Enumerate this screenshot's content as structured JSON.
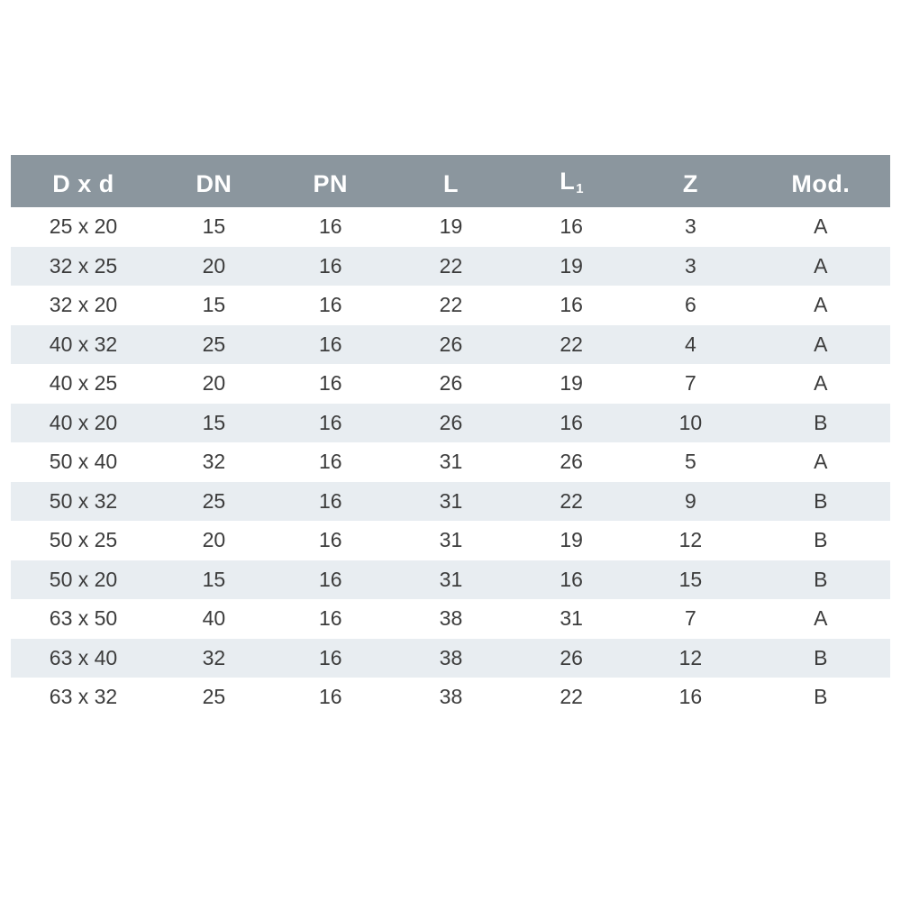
{
  "colors": {
    "header_bg": "#8b969e",
    "header_text": "#ffffff",
    "row_alt_bg": "#e8edf1",
    "row_bg": "#ffffff",
    "cell_text": "#3c3c3c",
    "page_bg": "#ffffff"
  },
  "table": {
    "columns": [
      {
        "key": "dxd",
        "label": "D x d",
        "sub": ""
      },
      {
        "key": "dn",
        "label": "DN",
        "sub": ""
      },
      {
        "key": "pn",
        "label": "PN",
        "sub": ""
      },
      {
        "key": "l",
        "label": "L",
        "sub": ""
      },
      {
        "key": "l1",
        "label": "L",
        "sub": "1"
      },
      {
        "key": "z",
        "label": "Z",
        "sub": ""
      },
      {
        "key": "mod",
        "label": "Mod.",
        "sub": ""
      }
    ],
    "rows": [
      [
        "25 x 20",
        "15",
        "16",
        "19",
        "16",
        "3",
        "A"
      ],
      [
        "32 x 25",
        "20",
        "16",
        "22",
        "19",
        "3",
        "A"
      ],
      [
        "32 x 20",
        "15",
        "16",
        "22",
        "16",
        "6",
        "A"
      ],
      [
        "40 x 32",
        "25",
        "16",
        "26",
        "22",
        "4",
        "A"
      ],
      [
        "40 x 25",
        "20",
        "16",
        "26",
        "19",
        "7",
        "A"
      ],
      [
        "40 x 20",
        "15",
        "16",
        "26",
        "16",
        "10",
        "B"
      ],
      [
        "50 x 40",
        "32",
        "16",
        "31",
        "26",
        "5",
        "A"
      ],
      [
        "50 x 32",
        "25",
        "16",
        "31",
        "22",
        "9",
        "B"
      ],
      [
        "50 x 25",
        "20",
        "16",
        "31",
        "19",
        "12",
        "B"
      ],
      [
        "50 x 20",
        "15",
        "16",
        "31",
        "16",
        "15",
        "B"
      ],
      [
        "63 x 50",
        "40",
        "16",
        "38",
        "31",
        "7",
        "A"
      ],
      [
        "63 x 40",
        "32",
        "16",
        "38",
        "26",
        "12",
        "B"
      ],
      [
        "63 x 32",
        "25",
        "16",
        "38",
        "22",
        "16",
        "B"
      ]
    ]
  },
  "chart_data": {
    "type": "table",
    "title": "",
    "columns": [
      "D x d",
      "DN",
      "PN",
      "L",
      "L1",
      "Z",
      "Mod."
    ],
    "rows": [
      [
        "25 x 20",
        15,
        16,
        19,
        16,
        3,
        "A"
      ],
      [
        "32 x 25",
        20,
        16,
        22,
        19,
        3,
        "A"
      ],
      [
        "32 x 20",
        15,
        16,
        22,
        16,
        6,
        "A"
      ],
      [
        "40 x 32",
        25,
        16,
        26,
        22,
        4,
        "A"
      ],
      [
        "40 x 25",
        20,
        16,
        26,
        19,
        7,
        "A"
      ],
      [
        "40 x 20",
        15,
        16,
        26,
        16,
        10,
        "B"
      ],
      [
        "50 x 40",
        32,
        16,
        31,
        26,
        5,
        "A"
      ],
      [
        "50 x 32",
        25,
        16,
        31,
        22,
        9,
        "B"
      ],
      [
        "50 x 25",
        20,
        16,
        31,
        19,
        12,
        "B"
      ],
      [
        "50 x 20",
        15,
        16,
        31,
        16,
        15,
        "B"
      ],
      [
        "63 x 50",
        40,
        16,
        38,
        31,
        7,
        "A"
      ],
      [
        "63 x 40",
        32,
        16,
        38,
        26,
        12,
        "B"
      ],
      [
        "63 x 32",
        25,
        16,
        38,
        22,
        16,
        "B"
      ]
    ],
    "layout": {
      "header_style": "solid gray bar, white bold text",
      "body_style": "zebra stripes starting white, pale blue alternate",
      "alignment": "all columns centered"
    }
  }
}
